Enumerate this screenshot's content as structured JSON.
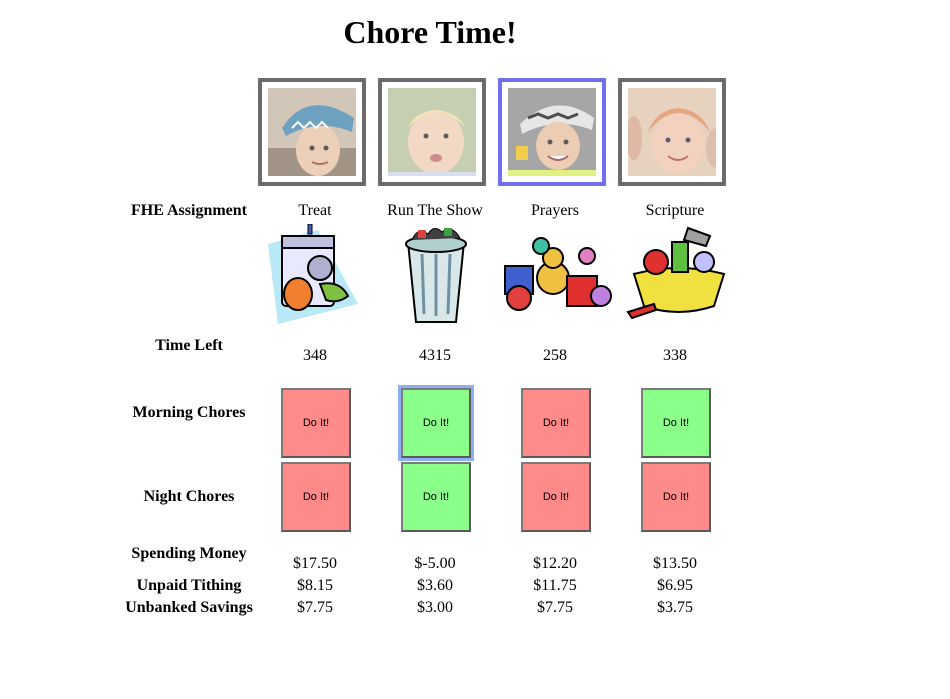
{
  "title": "Chore Time!",
  "row_labels": {
    "fhe": "FHE Assignment",
    "time_left": "Time Left",
    "morning": "Morning Chores",
    "night": "Night Chores",
    "spending": "Spending Money",
    "tithing": "Unpaid Tithing",
    "savings": "Unbanked Savings"
  },
  "button_label": "Do It!",
  "selected_kid_index": 2,
  "kids": [
    {
      "fhe": "Treat",
      "time_left": "348",
      "morning_status": "red",
      "night_status": "red",
      "spending": "$17.50",
      "tithing": "$8.15",
      "savings": "$7.75",
      "chore_icon": "laundry-icon"
    },
    {
      "fhe": "Run The Show",
      "time_left": "4315",
      "morning_status": "green",
      "night_status": "green",
      "spending": "$-5.00",
      "tithing": "$3.60",
      "savings": "$3.00",
      "chore_icon": "trash-can-icon"
    },
    {
      "fhe": "Prayers",
      "time_left": "258",
      "morning_status": "red",
      "night_status": "red",
      "spending": "$12.20",
      "tithing": "$11.75",
      "savings": "$7.75",
      "chore_icon": "toys-icon"
    },
    {
      "fhe": "Scripture",
      "time_left": "338",
      "morning_status": "green",
      "night_status": "red",
      "spending": "$13.50",
      "tithing": "$6.95",
      "savings": "$3.75",
      "chore_icon": "dishes-icon"
    }
  ],
  "colors": {
    "red_button": "#ff8a8a",
    "green_button": "#8aff8a",
    "photo_border": "#6b6b6b",
    "selected_border": "#6f6ff0"
  }
}
